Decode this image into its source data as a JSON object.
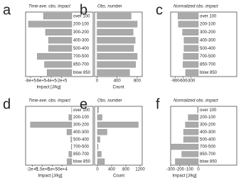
{
  "chart_data": [
    {
      "type": "bar",
      "panel": "a",
      "title": "Time-ave. obs. impact",
      "xlabel": "Impact [J/kg]",
      "color": "#aaaaaa",
      "categories": [
        "over 100",
        "200-100",
        "300-200",
        "400-300",
        "500-400",
        "700-500",
        "850-700",
        "blow 850"
      ],
      "values": [
        -550000,
        -840000,
        -510000,
        -450000,
        -450000,
        -670000,
        -530000,
        -480000
      ],
      "xlim": [
        -895000,
        0
      ],
      "xticks": [
        {
          "value": -800000,
          "label": "-8e+5"
        },
        {
          "value": -600000,
          "label": "-6e+5"
        },
        {
          "value": -400000,
          "label": "-4e+5"
        },
        {
          "value": -200000,
          "label": "-2e+5"
        }
      ]
    },
    {
      "type": "bar",
      "panel": "b",
      "title": "Obs. number",
      "xlabel": "Count",
      "color": "#aaaaaa",
      "values": [
        680,
        800,
        720,
        760,
        730,
        800,
        770,
        650
      ],
      "xlim": [
        -50,
        900
      ],
      "xticks": [
        0,
        400,
        800
      ]
    },
    {
      "type": "bar",
      "panel": "c",
      "title": "Normalized obs. impact",
      "color": "#aaaaaa",
      "categories": [
        "over 100",
        "200-100",
        "300-200",
        "400-300",
        "500-400",
        "700-500",
        "850-700",
        "blow 850"
      ],
      "values": [
        -800,
        -780,
        -620,
        -560,
        -560,
        -590,
        -600,
        -500
      ],
      "xlim": [
        -1000,
        0
      ],
      "xticks": [
        -900,
        -600,
        -300
      ]
    },
    {
      "type": "bar",
      "panel": "d",
      "title": "Time-ave. obs. impact",
      "xlabel": "Impact [J/kg]",
      "color": "#aaaaaa",
      "categories": [
        "over 100",
        "200-100",
        "300-200",
        "400-300",
        "500-400",
        "700-500",
        "850-700",
        "blow 850"
      ],
      "values": [
        -1000,
        -15000,
        -210000,
        -25000,
        -5000,
        -3000,
        -15000,
        -24000
      ],
      "xlim": [
        -220000,
        0
      ],
      "xticks": [
        {
          "value": -200000,
          "label": "-2e+5"
        },
        {
          "value": -150000,
          "label": "-1.5e+5"
        },
        {
          "value": -100000,
          "label": "-1e+5"
        },
        {
          "value": -50000,
          "label": "-5e+4"
        }
      ]
    },
    {
      "type": "bar",
      "panel": "e",
      "title": "Obs. number",
      "xlabel": "Count",
      "color": "#aaaaaa",
      "values": [
        30,
        130,
        1150,
        270,
        70,
        20,
        110,
        200
      ],
      "xlim": [
        0,
        1200
      ],
      "xticks": [
        0,
        400,
        800,
        1200
      ]
    },
    {
      "type": "bar",
      "panel": "f",
      "title": "Normalized obs. impact",
      "xlabel": "Impact [J/kg]",
      "color": "#aaaaaa",
      "categories": [
        "over 100",
        "200-100",
        "300-200",
        "400-300",
        "500-400",
        "700-500",
        "850-700",
        "blow 850"
      ],
      "values": [
        -10,
        -110,
        -140,
        -160,
        -160,
        -300,
        -180,
        -250
      ],
      "xlim": [
        -300,
        0
      ],
      "xticks": [
        -300,
        -200,
        -100,
        0
      ]
    }
  ]
}
